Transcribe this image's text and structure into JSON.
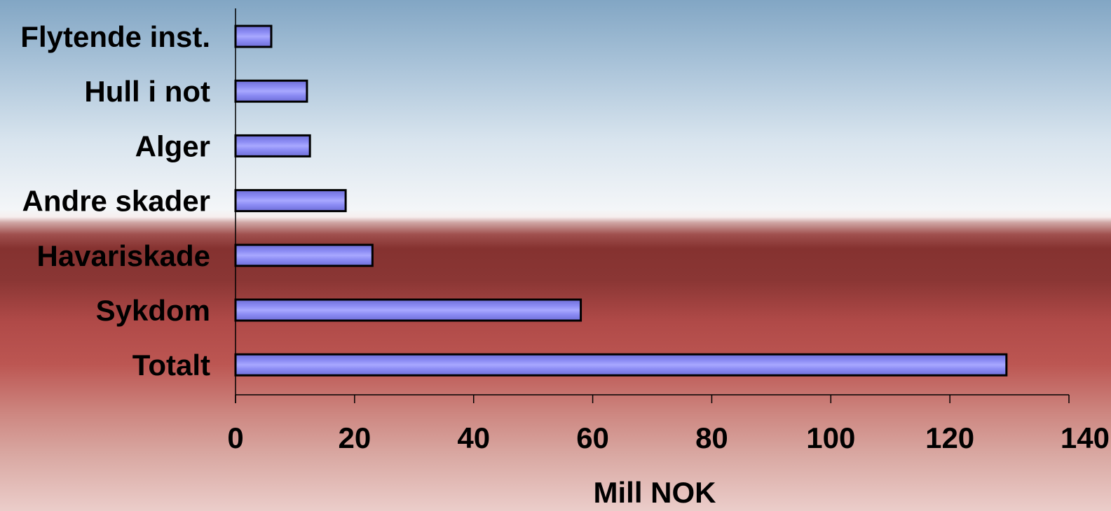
{
  "chart_data": {
    "type": "bar",
    "orientation": "horizontal",
    "categories": [
      "Flytende inst.",
      "Hull i not",
      "Alger",
      "Andre skader",
      "Havariskade",
      "Sykdom",
      "Totalt"
    ],
    "values": [
      6,
      12,
      12.5,
      18.5,
      23,
      58,
      129.5
    ],
    "title": "",
    "xlabel": "Mill NOK",
    "ylabel": "",
    "xlim": [
      0,
      140
    ],
    "xticks": [
      0,
      20,
      40,
      60,
      80,
      100,
      120,
      140
    ],
    "xtick_labels": [
      "0",
      "20",
      "40",
      "60",
      "80",
      "100",
      "120",
      "140"
    ],
    "grid": false,
    "legend": "none",
    "bar_color": "#8080f0",
    "bar_highlight_color": "#a8a8ff",
    "bar_edge_color": "#000000"
  }
}
